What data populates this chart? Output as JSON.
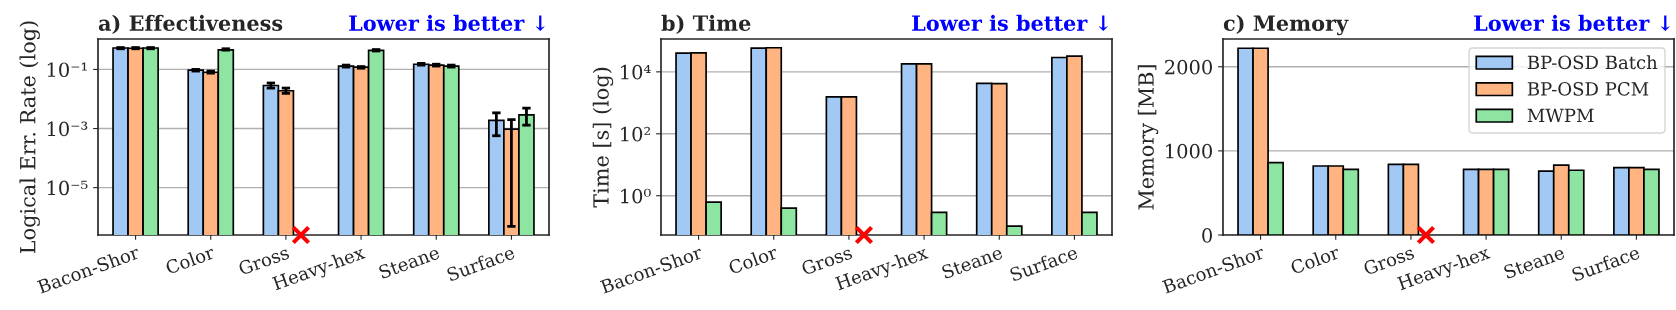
{
  "chart_data": [
    {
      "type": "bar",
      "title": "a) Effectiveness",
      "subtitle": "Lower is better ↓",
      "ylabel": "Logical Err. Rate (log)",
      "log": "y",
      "grid": "y",
      "categories": [
        "Bacon-Shor",
        "Color",
        "Gross",
        "Heavy-hex",
        "Steane",
        "Surface"
      ],
      "ylim": [
        2.5e-07,
        1.07
      ],
      "yticks": [
        {
          "value": 1e-05,
          "label": "10⁻⁵"
        },
        {
          "value": 0.001,
          "label": "10⁻³"
        },
        {
          "value": 0.1,
          "label": "10⁻¹"
        }
      ],
      "series": [
        {
          "color": "#a1c9f4",
          "values": [
            0.53,
            0.095,
            0.0285,
            0.13,
            0.15,
            0.0019
          ],
          "errors": [
            [
              0.5,
              0.55
            ],
            [
              0.088,
              0.1
            ],
            [
              0.0234,
              0.0347
            ],
            [
              0.12,
              0.14
            ],
            [
              0.14,
              0.16
            ],
            [
              0.00057,
              0.0034
            ]
          ]
        },
        {
          "color": "#ffb482",
          "values": [
            0.52,
            0.08,
            0.019,
            0.12,
            0.14,
            0.00095
          ],
          "errors": [
            [
              0.5,
              0.55
            ],
            [
              0.075,
              0.088
            ],
            [
              0.0155,
              0.0234
            ],
            [
              0.11,
              0.125
            ],
            [
              0.13,
              0.15
            ],
            [
              4.9e-07,
              0.002
            ]
          ]
        },
        {
          "color": "#8de5a1",
          "values": [
            0.53,
            0.46,
            null,
            0.44,
            0.13,
            0.0029
          ],
          "errors": [
            [
              0.5,
              0.55
            ],
            [
              0.45,
              0.5
            ],
            null,
            [
              0.42,
              0.47
            ],
            [
              0.12,
              0.14
            ],
            [
              0.0013,
              0.0049
            ]
          ]
        },
        {
          "type": "scatter",
          "color": "#ff0000",
          "marker": "cross",
          "values": [
            null,
            null,
            2.5e-07,
            null,
            null,
            null
          ]
        }
      ]
    },
    {
      "type": "bar",
      "title": "b) Time",
      "subtitle": "Lower is better ↓",
      "ylabel": "Time [s] (log)",
      "log": "y",
      "grid": "y",
      "categories": [
        "Bacon-Shor",
        "Color",
        "Gross",
        "Heavy-hex",
        "Steane",
        "Surface"
      ],
      "ylim": [
        0.054,
        115000
      ],
      "yticks": [
        {
          "value": 1,
          "label": "10⁰"
        },
        {
          "value": 100,
          "label": "10²"
        },
        {
          "value": 10000,
          "label": "10⁴"
        }
      ],
      "series": [
        {
          "color": "#a1c9f4",
          "values": [
            40000,
            58000,
            1550,
            18000,
            4250,
            29000
          ]
        },
        {
          "color": "#ffb482",
          "values": [
            41000,
            60000,
            1550,
            18000,
            4150,
            32000
          ]
        },
        {
          "color": "#8de5a1",
          "values": [
            0.62,
            0.4,
            null,
            0.29,
            0.105,
            0.29
          ]
        },
        {
          "type": "scatter",
          "color": "#ff0000",
          "marker": "cross",
          "values": [
            null,
            null,
            0.054,
            null,
            null,
            null
          ]
        }
      ]
    },
    {
      "type": "bar",
      "title": "c) Memory",
      "subtitle": "Lower is better ↓",
      "ylabel": "Memory [MB]",
      "grid": "y",
      "legend": "top right",
      "categories": [
        "Bacon-Shor",
        "Color",
        "Gross",
        "Heavy-hex",
        "Steane",
        "Surface"
      ],
      "ylim": [
        0,
        2330
      ],
      "yticks": [
        0,
        1000,
        2000
      ],
      "series": [
        {
          "name": "BP-OSD Batch",
          "color": "#a1c9f4",
          "values": [
            2220,
            820,
            840,
            780,
            760,
            800
          ]
        },
        {
          "name": "BP-OSD PCM",
          "color": "#ffb482",
          "values": [
            2220,
            820,
            840,
            780,
            830,
            800
          ]
        },
        {
          "name": "MWPM",
          "color": "#8de5a1",
          "values": [
            860,
            780,
            null,
            780,
            770,
            780
          ]
        },
        {
          "type": "scatter",
          "color": "#ff0000",
          "marker": "cross",
          "values": [
            null,
            null,
            0,
            null,
            null,
            null
          ]
        }
      ]
    }
  ]
}
